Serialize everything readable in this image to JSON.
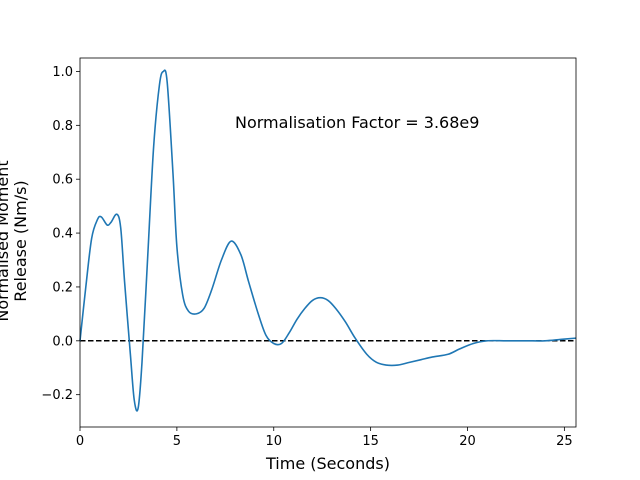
{
  "chart_data": {
    "type": "line",
    "xlabel": "Time (Seconds)",
    "ylabel_lines": [
      "Normalised Moment",
      "Release (Nm/s)"
    ],
    "annotation": "Normalisation Factor = 3.68e9",
    "xlim": [
      0,
      25.6
    ],
    "ylim": [
      -0.32,
      1.05
    ],
    "x_ticks": [
      0,
      5,
      10,
      15,
      20,
      25
    ],
    "y_ticks": [
      -0.2,
      0.0,
      0.2,
      0.4,
      0.6,
      0.8,
      1.0
    ],
    "x_tick_labels": [
      "0",
      "5",
      "10",
      "15",
      "20",
      "25"
    ],
    "y_tick_labels": [
      "−0.2",
      "0.0",
      "0.2",
      "0.4",
      "0.6",
      "0.8",
      "1.0"
    ],
    "grid": false,
    "reference_line": {
      "y": 0,
      "style": "dashed",
      "color": "#000000"
    },
    "series": [
      {
        "color": "#1f77b4",
        "x": [
          0,
          0.3,
          0.6,
          0.9,
          1.1,
          1.4,
          1.6,
          1.9,
          2.1,
          2.3,
          2.6,
          2.8,
          3.0,
          3.2,
          3.5,
          3.8,
          4.1,
          4.3,
          4.5,
          4.8,
          5.0,
          5.3,
          5.6,
          6.0,
          6.4,
          6.8,
          7.3,
          7.8,
          8.3,
          8.7,
          9.2,
          9.6,
          10.0,
          10.4,
          10.8,
          11.2,
          11.6,
          12.0,
          12.4,
          12.8,
          13.2,
          13.7,
          14.2,
          14.8,
          15.3,
          15.8,
          16.4,
          17.0,
          17.6,
          18.2,
          19.0,
          19.6,
          20.3,
          21.0,
          22.0,
          23.0,
          24.0,
          24.8,
          25.6
        ],
        "y": [
          0.0,
          0.2,
          0.38,
          0.45,
          0.46,
          0.43,
          0.44,
          0.47,
          0.42,
          0.22,
          -0.05,
          -0.22,
          -0.25,
          -0.08,
          0.32,
          0.72,
          0.95,
          1.0,
          0.96,
          0.62,
          0.35,
          0.17,
          0.11,
          0.1,
          0.12,
          0.19,
          0.3,
          0.37,
          0.32,
          0.22,
          0.1,
          0.02,
          -0.01,
          -0.01,
          0.03,
          0.08,
          0.12,
          0.15,
          0.16,
          0.15,
          0.12,
          0.07,
          0.01,
          -0.05,
          -0.08,
          -0.09,
          -0.09,
          -0.08,
          -0.07,
          -0.06,
          -0.05,
          -0.03,
          -0.01,
          0.0,
          0.0,
          0.0,
          0.0,
          0.005,
          0.01
        ]
      }
    ]
  }
}
